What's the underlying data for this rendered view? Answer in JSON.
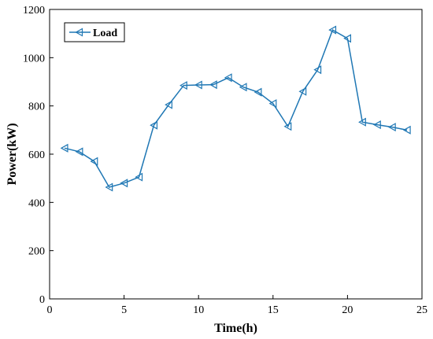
{
  "chart_data": {
    "type": "line",
    "title": "",
    "xlabel": "Time(h)",
    "ylabel": "Power(kW)",
    "xlim": [
      0,
      25
    ],
    "ylim": [
      0,
      1200
    ],
    "xticks": [
      "0",
      "5",
      "10",
      "15",
      "20",
      "25"
    ],
    "yticks": [
      "0",
      "200",
      "400",
      "600",
      "800",
      "1000",
      "1200"
    ],
    "grid": false,
    "legend_position": "top-left",
    "series": [
      {
        "name": "Load",
        "color": "#1f77b4",
        "marker": "triangle-left",
        "x": [
          1,
          2,
          3,
          4,
          5,
          6,
          7,
          8,
          9,
          10,
          11,
          12,
          13,
          14,
          15,
          16,
          17,
          18,
          19,
          20,
          21,
          22,
          23,
          24
        ],
        "y": [
          625,
          610,
          570,
          463,
          480,
          505,
          720,
          805,
          885,
          887,
          888,
          917,
          878,
          857,
          810,
          715,
          860,
          950,
          1115,
          1080,
          733,
          722,
          712,
          700
        ]
      }
    ]
  }
}
